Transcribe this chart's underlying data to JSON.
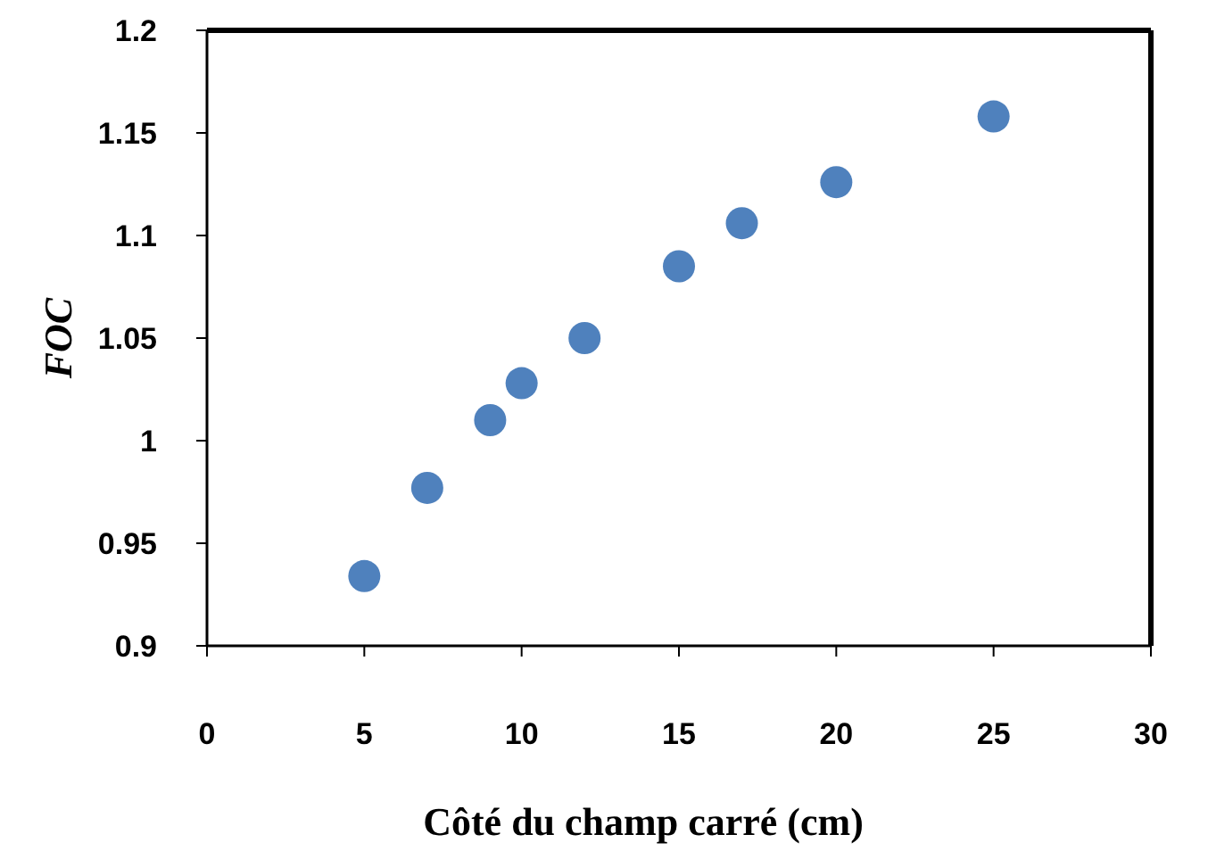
{
  "chart_data": {
    "type": "scatter",
    "xlabel": "Côté du champ carré (cm)",
    "ylabel": "FOC",
    "x": [
      5,
      7,
      9,
      10,
      12,
      15,
      17,
      20,
      25
    ],
    "series": [
      {
        "color": "#4f81bd",
        "values": [
          0.934,
          0.977,
          1.01,
          1.028,
          1.05,
          1.085,
          1.106,
          1.126,
          1.158
        ]
      }
    ],
    "xlim": [
      0,
      30
    ],
    "xticks": [
      0,
      5,
      10,
      15,
      20,
      25,
      30
    ],
    "ylim": [
      0.9,
      1.2
    ],
    "yticks": [
      0.9,
      0.95,
      1,
      1.05,
      1.1,
      1.15,
      1.2
    ],
    "grid": false,
    "marker": "circle"
  }
}
